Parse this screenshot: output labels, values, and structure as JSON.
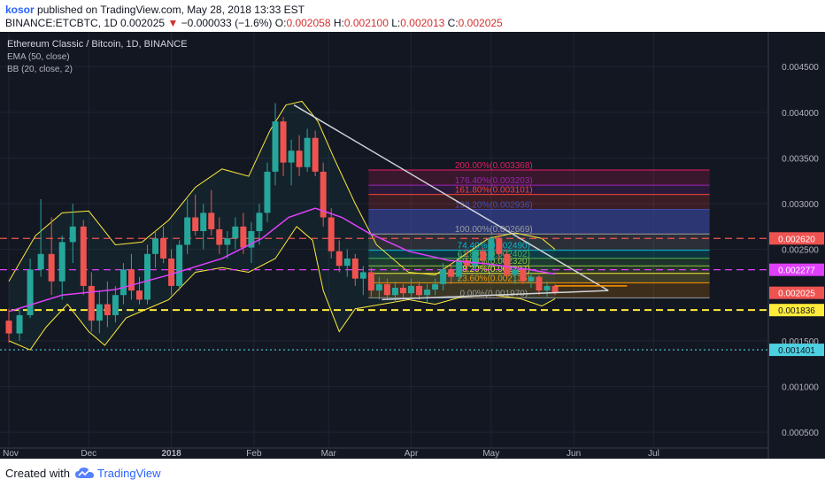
{
  "header": {
    "author": "kosor",
    "published": "published on TradingView.com, May 28, 2018 13:33 EST",
    "symbol": "BINANCE:ETCBTC, 1D",
    "last": "0.002025",
    "arrow": "▼",
    "change": "−0.000033 (−1.6%)",
    "o_label": "O:",
    "o_value": "0.002058",
    "h_label": "H:",
    "h_value": "0.002100",
    "l_label": "L:",
    "l_value": "0.002013",
    "c_label": "C:",
    "c_value": "0.002025"
  },
  "footer": {
    "created": "Created with",
    "brand": "TradingView",
    "logo_icon": "tradingview-cloud-icon"
  },
  "colors": {
    "background": "#131722",
    "up": "#26a69a",
    "down": "#ef5350",
    "ema": "#e040fb",
    "bollinger": "#ffeb3b",
    "trendline": "#d1d4dc"
  },
  "chart_data": {
    "type": "candlestick",
    "title": "Ethereum Classic / Bitcoin, 1D, BINANCE",
    "indicators": [
      "EMA (50, close)",
      "BB (20, close, 2)"
    ],
    "yaxis": {
      "position": "right",
      "ylim": [
        0.00021,
        0.00488
      ],
      "ticks": [
        "0.004500",
        "0.004000",
        "0.003500",
        "0.003000",
        "0.002500",
        "0.001500",
        "0.001000",
        "0.000500"
      ]
    },
    "xaxis": {
      "ticks": [
        "Nov",
        "Dec",
        "2018",
        "Feb",
        "Mar",
        "Apr",
        "May",
        "Jun",
        "Jul"
      ],
      "tick_days": [
        0,
        30,
        61,
        92,
        120,
        151,
        181,
        212,
        242
      ]
    },
    "candles": [
      {
        "d": 0,
        "o": 0.00172,
        "h": 0.00185,
        "l": 0.00148,
        "c": 0.00158
      },
      {
        "d": 4,
        "o": 0.00158,
        "h": 0.00185,
        "l": 0.0015,
        "c": 0.00178
      },
      {
        "d": 8,
        "o": 0.00178,
        "h": 0.0024,
        "l": 0.00175,
        "c": 0.00228
      },
      {
        "d": 12,
        "o": 0.00228,
        "h": 0.00305,
        "l": 0.0022,
        "c": 0.00245
      },
      {
        "d": 16,
        "o": 0.00245,
        "h": 0.00285,
        "l": 0.002,
        "c": 0.00215
      },
      {
        "d": 20,
        "o": 0.00215,
        "h": 0.00265,
        "l": 0.00195,
        "c": 0.00258
      },
      {
        "d": 24,
        "o": 0.00258,
        "h": 0.003,
        "l": 0.00235,
        "c": 0.00275
      },
      {
        "d": 28,
        "o": 0.00275,
        "h": 0.00282,
        "l": 0.002,
        "c": 0.0021
      },
      {
        "d": 31,
        "o": 0.0021,
        "h": 0.00225,
        "l": 0.0016,
        "c": 0.00172
      },
      {
        "d": 34,
        "o": 0.00172,
        "h": 0.00205,
        "l": 0.00158,
        "c": 0.0019
      },
      {
        "d": 37,
        "o": 0.0019,
        "h": 0.00215,
        "l": 0.00165,
        "c": 0.00178
      },
      {
        "d": 40,
        "o": 0.00178,
        "h": 0.0021,
        "l": 0.0017,
        "c": 0.002
      },
      {
        "d": 43,
        "o": 0.002,
        "h": 0.00235,
        "l": 0.0019,
        "c": 0.00228
      },
      {
        "d": 46,
        "o": 0.00228,
        "h": 0.00245,
        "l": 0.00195,
        "c": 0.00205
      },
      {
        "d": 49,
        "o": 0.00205,
        "h": 0.0022,
        "l": 0.0019,
        "c": 0.00195
      },
      {
        "d": 52,
        "o": 0.00195,
        "h": 0.00255,
        "l": 0.0019,
        "c": 0.00245
      },
      {
        "d": 55,
        "o": 0.00245,
        "h": 0.0027,
        "l": 0.0023,
        "c": 0.00262
      },
      {
        "d": 58,
        "o": 0.00262,
        "h": 0.00275,
        "l": 0.00235,
        "c": 0.0024
      },
      {
        "d": 61,
        "o": 0.0024,
        "h": 0.0025,
        "l": 0.002,
        "c": 0.0021
      },
      {
        "d": 64,
        "o": 0.0021,
        "h": 0.0026,
        "l": 0.00205,
        "c": 0.00255
      },
      {
        "d": 67,
        "o": 0.00255,
        "h": 0.00305,
        "l": 0.00245,
        "c": 0.00285
      },
      {
        "d": 70,
        "o": 0.00285,
        "h": 0.0031,
        "l": 0.00265,
        "c": 0.0027
      },
      {
        "d": 73,
        "o": 0.0027,
        "h": 0.003,
        "l": 0.0025,
        "c": 0.0029
      },
      {
        "d": 76,
        "o": 0.0029,
        "h": 0.00315,
        "l": 0.00265,
        "c": 0.00272
      },
      {
        "d": 79,
        "o": 0.00272,
        "h": 0.00285,
        "l": 0.00245,
        "c": 0.00255
      },
      {
        "d": 82,
        "o": 0.00255,
        "h": 0.0027,
        "l": 0.0024,
        "c": 0.00262
      },
      {
        "d": 85,
        "o": 0.00262,
        "h": 0.00285,
        "l": 0.0025,
        "c": 0.00275
      },
      {
        "d": 88,
        "o": 0.00275,
        "h": 0.0029,
        "l": 0.00245,
        "c": 0.00252
      },
      {
        "d": 91,
        "o": 0.00252,
        "h": 0.0028,
        "l": 0.00235,
        "c": 0.0027
      },
      {
        "d": 94,
        "o": 0.0027,
        "h": 0.003,
        "l": 0.00255,
        "c": 0.0029
      },
      {
        "d": 97,
        "o": 0.0029,
        "h": 0.00345,
        "l": 0.0028,
        "c": 0.00335
      },
      {
        "d": 100,
        "o": 0.00335,
        "h": 0.0041,
        "l": 0.0032,
        "c": 0.0039
      },
      {
        "d": 103,
        "o": 0.0039,
        "h": 0.00395,
        "l": 0.0033,
        "c": 0.00345
      },
      {
        "d": 106,
        "o": 0.00345,
        "h": 0.0037,
        "l": 0.0032,
        "c": 0.00358
      },
      {
        "d": 109,
        "o": 0.00358,
        "h": 0.00375,
        "l": 0.0033,
        "c": 0.0034
      },
      {
        "d": 112,
        "o": 0.0034,
        "h": 0.00382,
        "l": 0.00335,
        "c": 0.00372
      },
      {
        "d": 115,
        "o": 0.00372,
        "h": 0.0038,
        "l": 0.0033,
        "c": 0.00335
      },
      {
        "d": 118,
        "o": 0.00335,
        "h": 0.00345,
        "l": 0.00275,
        "c": 0.00285
      },
      {
        "d": 121,
        "o": 0.00285,
        "h": 0.00295,
        "l": 0.0024,
        "c": 0.00248
      },
      {
        "d": 124,
        "o": 0.00248,
        "h": 0.0026,
        "l": 0.00225,
        "c": 0.00232
      },
      {
        "d": 127,
        "o": 0.00232,
        "h": 0.0025,
        "l": 0.0022,
        "c": 0.0024
      },
      {
        "d": 130,
        "o": 0.0024,
        "h": 0.00245,
        "l": 0.0021,
        "c": 0.00218
      },
      {
        "d": 133,
        "o": 0.00218,
        "h": 0.00232,
        "l": 0.002,
        "c": 0.00225
      },
      {
        "d": 136,
        "o": 0.00225,
        "h": 0.0023,
        "l": 0.00198,
        "c": 0.00205
      },
      {
        "d": 139,
        "o": 0.00205,
        "h": 0.0022,
        "l": 0.00195,
        "c": 0.00212
      },
      {
        "d": 142,
        "o": 0.00212,
        "h": 0.00218,
        "l": 0.00195,
        "c": 0.002
      },
      {
        "d": 145,
        "o": 0.002,
        "h": 0.00215,
        "l": 0.00192,
        "c": 0.00208
      },
      {
        "d": 148,
        "o": 0.00208,
        "h": 0.00212,
        "l": 0.00195,
        "c": 0.00202
      },
      {
        "d": 151,
        "o": 0.00202,
        "h": 0.00218,
        "l": 0.00196,
        "c": 0.0021
      },
      {
        "d": 154,
        "o": 0.0021,
        "h": 0.00215,
        "l": 0.00195,
        "c": 0.002
      },
      {
        "d": 157,
        "o": 0.002,
        "h": 0.00212,
        "l": 0.00192,
        "c": 0.00206
      },
      {
        "d": 160,
        "o": 0.00206,
        "h": 0.00218,
        "l": 0.002,
        "c": 0.00212
      },
      {
        "d": 163,
        "o": 0.00212,
        "h": 0.00235,
        "l": 0.00205,
        "c": 0.00228
      },
      {
        "d": 166,
        "o": 0.00228,
        "h": 0.00235,
        "l": 0.00212,
        "c": 0.0022
      },
      {
        "d": 169,
        "o": 0.0022,
        "h": 0.00245,
        "l": 0.00215,
        "c": 0.00238
      },
      {
        "d": 172,
        "o": 0.00238,
        "h": 0.0025,
        "l": 0.00225,
        "c": 0.00232
      },
      {
        "d": 175,
        "o": 0.00232,
        "h": 0.00255,
        "l": 0.00228,
        "c": 0.00248
      },
      {
        "d": 178,
        "o": 0.00248,
        "h": 0.00252,
        "l": 0.00232,
        "c": 0.00238
      },
      {
        "d": 181,
        "o": 0.00238,
        "h": 0.00265,
        "l": 0.00235,
        "c": 0.00262
      },
      {
        "d": 184,
        "o": 0.00262,
        "h": 0.00268,
        "l": 0.00238,
        "c": 0.00245
      },
      {
        "d": 187,
        "o": 0.00245,
        "h": 0.0025,
        "l": 0.00218,
        "c": 0.00222
      },
      {
        "d": 190,
        "o": 0.00222,
        "h": 0.00232,
        "l": 0.00212,
        "c": 0.00228
      },
      {
        "d": 193,
        "o": 0.00228,
        "h": 0.0023,
        "l": 0.00212,
        "c": 0.00215
      },
      {
        "d": 196,
        "o": 0.00215,
        "h": 0.00225,
        "l": 0.00208,
        "c": 0.0022
      },
      {
        "d": 199,
        "o": 0.0022,
        "h": 0.00222,
        "l": 0.002,
        "c": 0.00205
      },
      {
        "d": 202,
        "o": 0.00205,
        "h": 0.00215,
        "l": 0.00198,
        "c": 0.0021
      },
      {
        "d": 205,
        "o": 0.0021,
        "h": 0.00212,
        "l": 0.002,
        "c": 0.00203
      }
    ],
    "ema": [
      [
        0,
        0.00182
      ],
      [
        20,
        0.002
      ],
      [
        40,
        0.00206
      ],
      [
        60,
        0.00222
      ],
      [
        80,
        0.0024
      ],
      [
        95,
        0.00262
      ],
      [
        105,
        0.00285
      ],
      [
        115,
        0.00295
      ],
      [
        125,
        0.00285
      ],
      [
        135,
        0.00268
      ],
      [
        150,
        0.00248
      ],
      [
        165,
        0.00238
      ],
      [
        180,
        0.00234
      ],
      [
        195,
        0.00228
      ],
      [
        205,
        0.00223
      ]
    ],
    "bb_upper": [
      [
        0,
        0.00215
      ],
      [
        10,
        0.00265
      ],
      [
        20,
        0.0029
      ],
      [
        30,
        0.00292
      ],
      [
        40,
        0.00255
      ],
      [
        50,
        0.00258
      ],
      [
        60,
        0.00282
      ],
      [
        70,
        0.00318
      ],
      [
        80,
        0.00338
      ],
      [
        90,
        0.0033
      ],
      [
        98,
        0.0038
      ],
      [
        104,
        0.00408
      ],
      [
        110,
        0.00412
      ],
      [
        116,
        0.0039
      ],
      [
        122,
        0.0035
      ],
      [
        130,
        0.003
      ],
      [
        138,
        0.00255
      ],
      [
        150,
        0.00225
      ],
      [
        160,
        0.00222
      ],
      [
        170,
        0.00242
      ],
      [
        180,
        0.00262
      ],
      [
        190,
        0.00268
      ],
      [
        200,
        0.00262
      ],
      [
        205,
        0.0025
      ]
    ],
    "bb_lower": [
      [
        0,
        0.0015
      ],
      [
        8,
        0.0014
      ],
      [
        14,
        0.00165
      ],
      [
        22,
        0.0019
      ],
      [
        30,
        0.0016
      ],
      [
        36,
        0.00145
      ],
      [
        44,
        0.00175
      ],
      [
        52,
        0.00185
      ],
      [
        60,
        0.00195
      ],
      [
        70,
        0.00225
      ],
      [
        80,
        0.0023
      ],
      [
        90,
        0.00225
      ],
      [
        100,
        0.0024
      ],
      [
        108,
        0.00275
      ],
      [
        114,
        0.0026
      ],
      [
        118,
        0.00205
      ],
      [
        124,
        0.0016
      ],
      [
        130,
        0.00185
      ],
      [
        140,
        0.0019
      ],
      [
        150,
        0.00195
      ],
      [
        160,
        0.0019
      ],
      [
        170,
        0.00198
      ],
      [
        182,
        0.002
      ],
      [
        192,
        0.00196
      ],
      [
        200,
        0.00188
      ],
      [
        205,
        0.00196
      ]
    ],
    "horizontal_lines": [
      {
        "value": 0.00262,
        "label": "0.002620",
        "color": "#ef5350",
        "style": "dashed"
      },
      {
        "value": 0.002277,
        "label": "0.002277",
        "color": "#e040fb",
        "style": "dashed"
      },
      {
        "value": 0.001836,
        "label": "0.001836",
        "color": "#ffeb3b",
        "style": "dashed"
      },
      {
        "value": 0.001401,
        "label": "0.001401",
        "color": "#4dd0e1",
        "style": "dotted"
      }
    ],
    "last_price": {
      "value": 0.002025,
      "label": "0.002025"
    },
    "fibonacci": {
      "start_day": 135,
      "end_day": 263,
      "levels": [
        {
          "ratio": 2.0,
          "label": "200.00%(0.003368)",
          "price": 0.003368,
          "color": "#e91e63"
        },
        {
          "ratio": 1.764,
          "label": "176.40%(0.003203)",
          "price": 0.003203,
          "color": "#9c27b0"
        },
        {
          "ratio": 1.618,
          "label": "161.80%(0.003101)",
          "price": 0.003101,
          "color": "#f44336"
        },
        {
          "ratio": 1.382,
          "label": "138.20%(0.002936)",
          "price": 0.002936,
          "color": "#3f51b5"
        },
        {
          "ratio": 1.0,
          "label": "100.00%(0.002669)",
          "price": 0.002669,
          "color": "#9e9e9e"
        },
        {
          "ratio": 0.744,
          "label": "74.40%(0.002490)",
          "price": 0.00249,
          "color": "#00bcd4"
        },
        {
          "ratio": 0.618,
          "label": "61.80%(0.002402)",
          "price": 0.002402,
          "color": "#4caf50"
        },
        {
          "ratio": 0.5,
          "label": "50.00%(0.002320)",
          "price": 0.00232,
          "color": "#8bc34a"
        },
        {
          "ratio": 0.382,
          "label": "38.20%(0.002237)",
          "price": 0.002237,
          "color": "#ffeb3b"
        },
        {
          "ratio": 0.236,
          "label": "23.60%(0.002135)",
          "price": 0.002135,
          "color": "#ff9800"
        },
        {
          "ratio": 0.0,
          "label": "0.00%(0.001970)",
          "price": 0.00197,
          "color": "#9e9e9e"
        }
      ]
    },
    "trendlines": [
      {
        "from": [
          107,
          0.00408
        ],
        "to": [
          225,
          0.00205
        ]
      },
      {
        "from": [
          140,
          0.00195
        ],
        "to": [
          225,
          0.00205
        ]
      }
    ],
    "orange_line": {
      "from_day": 205,
      "to_day": 232,
      "value": 0.0021
    }
  }
}
